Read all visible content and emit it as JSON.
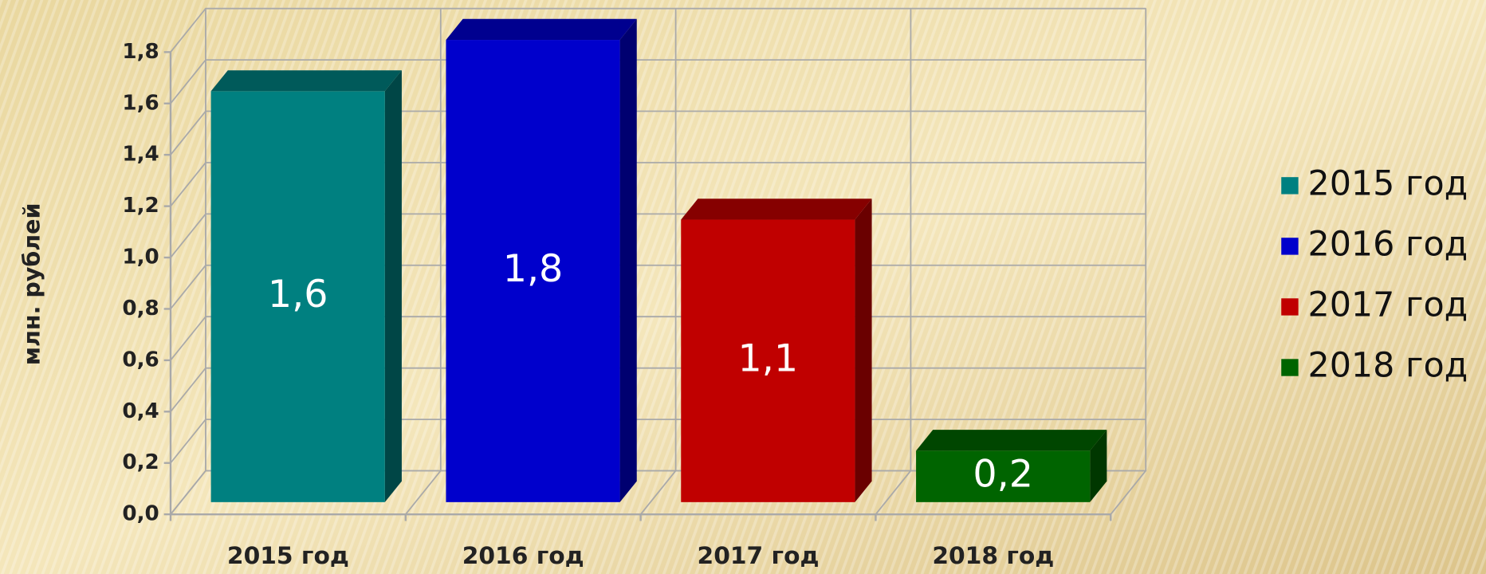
{
  "chart_data": {
    "type": "bar3d",
    "y_label": "млн. рублей",
    "categories": [
      "2015 год",
      "2016 год",
      "2017 год",
      "2018 год"
    ],
    "values": [
      1.6,
      1.8,
      1.1,
      0.2
    ],
    "value_labels": [
      "1,6",
      "1,8",
      "1,1",
      "0,2"
    ],
    "colors": [
      "#008080",
      "#0000cc",
      "#c00000",
      "#006400"
    ],
    "ylim": [
      0,
      1.8
    ],
    "yticks": [
      {
        "value": 0,
        "label": "0,0"
      },
      {
        "value": 0.2,
        "label": "0,2"
      },
      {
        "value": 0.4,
        "label": "0,4"
      },
      {
        "value": 0.6,
        "label": "0,6"
      },
      {
        "value": 0.8,
        "label": "0,8"
      },
      {
        "value": 1.0,
        "label": "1,0"
      },
      {
        "value": 1.2,
        "label": "1,2"
      },
      {
        "value": 1.4,
        "label": "1,4"
      },
      {
        "value": 1.6,
        "label": "1,6"
      },
      {
        "value": 1.8,
        "label": "1,8"
      }
    ],
    "grid": true,
    "legend": "right"
  }
}
